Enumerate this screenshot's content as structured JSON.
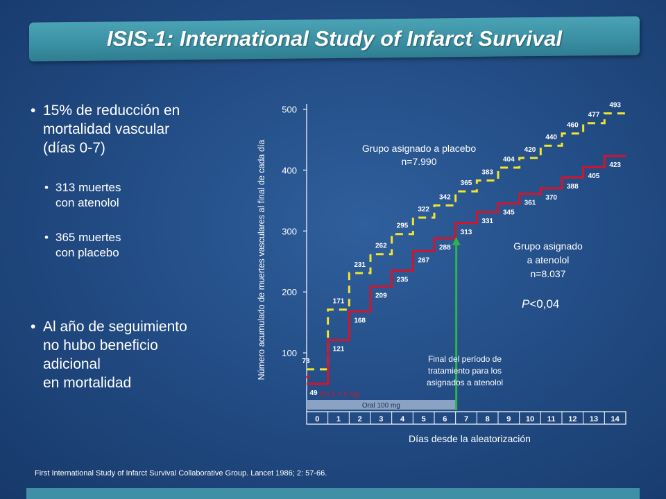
{
  "title": "ISIS-1: International Study of Infarct Survival",
  "bullets": {
    "b1": [
      "15% de reducción en",
      "mortalidad vascular",
      "(días 0-7)"
    ],
    "b2": [
      "313 muertes",
      "con atenolol"
    ],
    "b3": [
      "365 muertes",
      "con placebo"
    ],
    "b4": [
      "Al año de seguimiento",
      "no hubo beneficio",
      "adicional",
      "en mortalidad"
    ]
  },
  "citation": "First International Study of Infarct Survival Collaborative Group. Lancet 1986; 2: 57-66.",
  "chart_data": {
    "type": "line",
    "xlabel": "Días desde la aleatorización",
    "ylabel": "Número acumulado de muertes vasculares al final de cada día",
    "x": [
      0,
      1,
      2,
      3,
      4,
      5,
      6,
      7,
      8,
      9,
      10,
      11,
      12,
      13,
      14
    ],
    "ylim": [
      0,
      500
    ],
    "yticks": [
      100,
      200,
      300,
      400,
      500
    ],
    "series": [
      {
        "name": "Grupo asignado a placebo n=7.990",
        "color": "#f2e530",
        "style": "dashed-step",
        "values": [
          73,
          171,
          231,
          262,
          295,
          322,
          342,
          365,
          383,
          404,
          420,
          440,
          460,
          477,
          493
        ]
      },
      {
        "name": "Grupo asignado a atenolol n=8.037",
        "color": "#d3142b",
        "style": "solid-step",
        "values": [
          49,
          121,
          168,
          209,
          235,
          267,
          288,
          313,
          331,
          345,
          361,
          370,
          388,
          405,
          423
        ]
      }
    ],
    "annotations": {
      "placebo_label": [
        "Grupo asignado a placebo",
        "n=7.990"
      ],
      "atenolol_label": [
        "Grupo asignado",
        "a atenolol",
        "n=8.037"
      ],
      "pvalue_p": "P",
      "pvalue_rest": "<0,04",
      "end_treatment": [
        "Final del período de",
        "tratamiento para los",
        "asignados a atenolol"
      ],
      "iv_label": "EV 5 + 5  mg",
      "oral_label": "Oral 100 mg"
    },
    "colors": {
      "placebo": "#f2e530",
      "atenolol": "#d3142b",
      "arrow": "#2fb34a",
      "oral_bar": "#8aa3c4"
    }
  }
}
